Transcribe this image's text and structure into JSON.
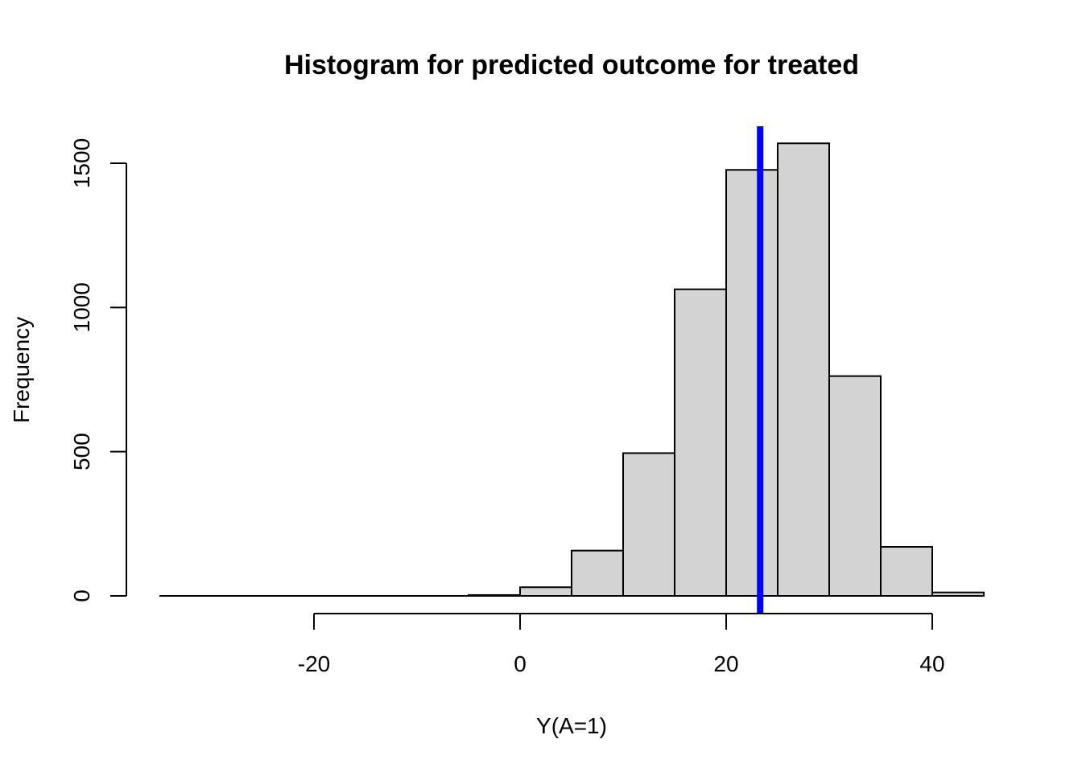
{
  "chart_data": {
    "type": "bar",
    "title": "Histogram for predicted outcome for treated",
    "xlabel": "Y(A=1)",
    "ylabel": "Frequency",
    "bin_width": 5,
    "bins": [
      {
        "start": -35,
        "end": -30,
        "count": 0
      },
      {
        "start": -30,
        "end": -25,
        "count": 0
      },
      {
        "start": -25,
        "end": -20,
        "count": 0
      },
      {
        "start": -20,
        "end": -15,
        "count": 0
      },
      {
        "start": -15,
        "end": -10,
        "count": 0
      },
      {
        "start": -10,
        "end": -5,
        "count": 0
      },
      {
        "start": -5,
        "end": 0,
        "count": 3
      },
      {
        "start": 0,
        "end": 5,
        "count": 30
      },
      {
        "start": 5,
        "end": 10,
        "count": 157
      },
      {
        "start": 10,
        "end": 15,
        "count": 495
      },
      {
        "start": 15,
        "end": 20,
        "count": 1063
      },
      {
        "start": 20,
        "end": 25,
        "count": 1477
      },
      {
        "start": 25,
        "end": 30,
        "count": 1569
      },
      {
        "start": 30,
        "end": 35,
        "count": 762
      },
      {
        "start": 35,
        "end": 40,
        "count": 170
      },
      {
        "start": 40,
        "end": 45,
        "count": 12
      }
    ],
    "xlim": [
      -35,
      45
    ],
    "ylim": [
      0,
      1630
    ],
    "x_ticks": [
      -20,
      0,
      20,
      40
    ],
    "x_tick_labels": [
      "-20",
      "0",
      "20",
      "40"
    ],
    "y_ticks": [
      0,
      500,
      1000,
      1500
    ],
    "y_tick_labels": [
      "0",
      "500",
      "1000",
      "1500"
    ],
    "vline": {
      "x": 23.3,
      "color": "#0000ff"
    },
    "bar_fill": "#d3d3d3",
    "bar_stroke": "#000000",
    "grid": false,
    "legend": "none"
  }
}
